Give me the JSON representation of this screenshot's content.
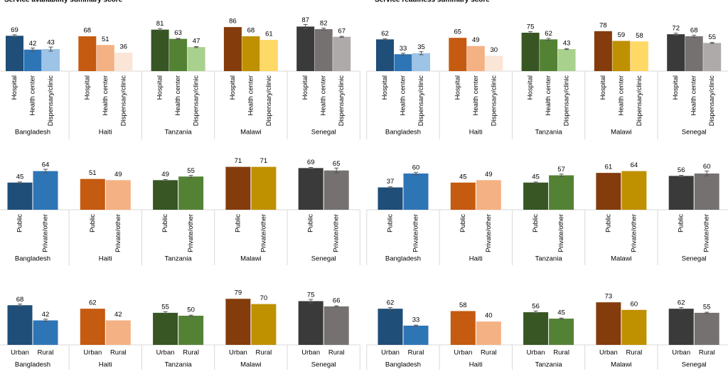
{
  "chart_data": [
    {
      "type": "grouped-bar",
      "title": "Service availability summary score",
      "ylim": [
        0,
        100
      ],
      "groups": [
        {
          "name": "Bangladesh",
          "categories": [
            "Hospital",
            "Health center",
            "Dispensary/clinic"
          ],
          "colors": [
            "#1f4e79",
            "#2e75b6",
            "#9dc3e6"
          ],
          "values": [
            69,
            42,
            43
          ],
          "errors": [
            2,
            3,
            4
          ]
        },
        {
          "name": "Haiti",
          "categories": [
            "Hospital",
            "Health center",
            "Dispensary/clinic"
          ],
          "colors": [
            "#c55a11",
            "#f4b183",
            "#fbe5d6"
          ],
          "values": [
            68,
            51,
            36
          ]
        },
        {
          "name": "Tanzania",
          "categories": [
            "Hospital",
            "Health center",
            "Dispensary/clinic"
          ],
          "colors": [
            "#375623",
            "#548235",
            "#a9d18e"
          ],
          "values": [
            81,
            63,
            47
          ],
          "errors": [
            2,
            1,
            1
          ]
        },
        {
          "name": "Malawi",
          "categories": [
            "Hospital",
            "Health center",
            "Dispensary/clinic"
          ],
          "colors": [
            "#843c0c",
            "#bf9000",
            "#ffd966"
          ],
          "values": [
            86,
            68,
            61
          ]
        },
        {
          "name": "Senegal",
          "categories": [
            "Hospital",
            "Health center",
            "Dispensary/clinic"
          ],
          "colors": [
            "#3a3a3a",
            "#767171",
            "#aeaaaa"
          ],
          "values": [
            87,
            82,
            67
          ],
          "errors": [
            4,
            2,
            1
          ]
        }
      ]
    },
    {
      "type": "grouped-bar",
      "title": "Service readiness summary score",
      "ylim": [
        0,
        100
      ],
      "groups": [
        {
          "name": "Bangladesh",
          "categories": [
            "Hospital",
            "Health center",
            "Dispensary/clinic"
          ],
          "colors": [
            "#1f4e79",
            "#2e75b6",
            "#9dc3e6"
          ],
          "values": [
            62,
            33,
            35
          ],
          "errors": [
            1,
            2,
            3
          ]
        },
        {
          "name": "Haiti",
          "categories": [
            "Hospital",
            "Health center",
            "Dispensary/clinic"
          ],
          "colors": [
            "#c55a11",
            "#f4b183",
            "#fbe5d6"
          ],
          "values": [
            65,
            49,
            30
          ]
        },
        {
          "name": "Tanzania",
          "categories": [
            "Hospital",
            "Health center",
            "Dispensary/clinic"
          ],
          "colors": [
            "#375623",
            "#548235",
            "#a9d18e"
          ],
          "values": [
            75,
            62,
            43
          ],
          "errors": [
            2,
            2,
            1
          ]
        },
        {
          "name": "Malawi",
          "categories": [
            "Hospital",
            "Health center",
            "Dispensary/clinic"
          ],
          "colors": [
            "#843c0c",
            "#bf9000",
            "#ffd966"
          ],
          "values": [
            78,
            59,
            58
          ]
        },
        {
          "name": "Senegal",
          "categories": [
            "Hospital",
            "Health center",
            "Dispensary/clinic"
          ],
          "colors": [
            "#3a3a3a",
            "#767171",
            "#aeaaaa"
          ],
          "values": [
            72,
            68,
            55
          ],
          "errors": [
            2,
            2,
            1
          ]
        }
      ]
    },
    {
      "type": "grouped-bar",
      "ylim": [
        0,
        100
      ],
      "groups": [
        {
          "name": "Bangladesh",
          "categories": [
            "Public",
            "Private/other"
          ],
          "colors": [
            "#1f4e79",
            "#2e75b6"
          ],
          "values": [
            45,
            64
          ],
          "errors": [
            1,
            3
          ]
        },
        {
          "name": "Haiti",
          "categories": [
            "Public",
            "Private/other"
          ],
          "colors": [
            "#c55a11",
            "#f4b183"
          ],
          "values": [
            51,
            49
          ]
        },
        {
          "name": "Tanzania",
          "categories": [
            "Public",
            "Private/other"
          ],
          "colors": [
            "#375623",
            "#548235"
          ],
          "values": [
            49,
            55
          ],
          "errors": [
            1,
            2
          ]
        },
        {
          "name": "Malawi",
          "categories": [
            "Public",
            "Private/other"
          ],
          "colors": [
            "#843c0c",
            "#bf9000"
          ],
          "values": [
            71,
            71
          ]
        },
        {
          "name": "Senegal",
          "categories": [
            "Public",
            "Private/other"
          ],
          "colors": [
            "#3a3a3a",
            "#767171"
          ],
          "values": [
            69,
            65
          ],
          "errors": [
            1,
            4
          ]
        }
      ]
    },
    {
      "type": "grouped-bar",
      "ylim": [
        0,
        100
      ],
      "groups": [
        {
          "name": "Bangladesh",
          "categories": [
            "Public",
            "Private/other"
          ],
          "colors": [
            "#1f4e79",
            "#2e75b6"
          ],
          "values": [
            37,
            60
          ],
          "errors": [
            1,
            2
          ]
        },
        {
          "name": "Haiti",
          "categories": [
            "Public",
            "Private/other"
          ],
          "colors": [
            "#c55a11",
            "#f4b183"
          ],
          "values": [
            45,
            49
          ]
        },
        {
          "name": "Tanzania",
          "categories": [
            "Public",
            "Private/other"
          ],
          "colors": [
            "#375623",
            "#548235"
          ],
          "values": [
            45,
            57
          ],
          "errors": [
            1,
            2
          ]
        },
        {
          "name": "Malawi",
          "categories": [
            "Public",
            "Private/other"
          ],
          "colors": [
            "#843c0c",
            "#bf9000"
          ],
          "values": [
            61,
            64
          ]
        },
        {
          "name": "Senegal",
          "categories": [
            "Public",
            "Private/other"
          ],
          "colors": [
            "#3a3a3a",
            "#767171"
          ],
          "values": [
            56,
            60
          ],
          "errors": [
            1,
            4
          ]
        }
      ]
    },
    {
      "type": "grouped-bar",
      "ylim": [
        0,
        100
      ],
      "groups": [
        {
          "name": "Bangladesh",
          "categories": [
            "Urban",
            "Rural"
          ],
          "colors": [
            "#1f4e79",
            "#2e75b6"
          ],
          "values": [
            68,
            42
          ],
          "errors": [
            2,
            2
          ]
        },
        {
          "name": "Haiti",
          "categories": [
            "Urban",
            "Rural"
          ],
          "colors": [
            "#c55a11",
            "#f4b183"
          ],
          "values": [
            62,
            42
          ]
        },
        {
          "name": "Tanzania",
          "categories": [
            "Urban",
            "Rural"
          ],
          "colors": [
            "#375623",
            "#548235"
          ],
          "values": [
            55,
            50
          ],
          "errors": [
            2,
            1
          ]
        },
        {
          "name": "Malawi",
          "categories": [
            "Urban",
            "Rural"
          ],
          "colors": [
            "#843c0c",
            "#bf9000"
          ],
          "values": [
            79,
            70
          ]
        },
        {
          "name": "Senegal",
          "categories": [
            "Urban",
            "Rural"
          ],
          "colors": [
            "#3a3a3a",
            "#767171"
          ],
          "values": [
            75,
            66
          ],
          "errors": [
            3,
            1
          ]
        }
      ]
    },
    {
      "type": "grouped-bar",
      "ylim": [
        0,
        100
      ],
      "groups": [
        {
          "name": "Bangladesh",
          "categories": [
            "Urban",
            "Rural"
          ],
          "colors": [
            "#1f4e79",
            "#2e75b6"
          ],
          "values": [
            62,
            33
          ],
          "errors": [
            2,
            1
          ]
        },
        {
          "name": "Haiti",
          "categories": [
            "Urban",
            "Rural"
          ],
          "colors": [
            "#c55a11",
            "#f4b183"
          ],
          "values": [
            58,
            40
          ]
        },
        {
          "name": "Tanzania",
          "categories": [
            "Urban",
            "Rural"
          ],
          "colors": [
            "#375623",
            "#548235"
          ],
          "values": [
            56,
            45
          ],
          "errors": [
            2,
            1
          ]
        },
        {
          "name": "Malawi",
          "categories": [
            "Urban",
            "Rural"
          ],
          "colors": [
            "#843c0c",
            "#bf9000"
          ],
          "values": [
            73,
            60
          ]
        },
        {
          "name": "Senegal",
          "categories": [
            "Urban",
            "Rural"
          ],
          "colors": [
            "#3a3a3a",
            "#767171"
          ],
          "values": [
            62,
            55
          ],
          "errors": [
            2,
            1
          ]
        }
      ]
    }
  ]
}
